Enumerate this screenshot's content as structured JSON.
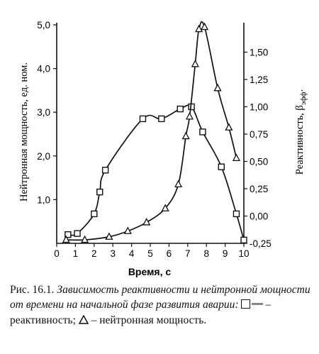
{
  "chart_data": {
    "type": "line",
    "x": [
      0.3,
      0.6,
      1.1,
      2.0,
      2.3,
      2.6,
      4.6,
      5.6,
      6.6,
      7.2,
      7.8,
      8.8,
      9.6,
      10.0
    ],
    "xlabel": "Время, с",
    "xlim": [
      0,
      10
    ],
    "xticks": [
      0,
      1,
      2,
      3,
      4,
      5,
      6,
      7,
      8,
      9,
      10
    ],
    "ylabel_left": "Нейтронная мощность, ед. ном.",
    "ylim_left": [
      0,
      5.0
    ],
    "yticks_left": [
      "1,0",
      "2,0",
      "3,0",
      "4,0",
      "5,0"
    ],
    "ylabel_right": "Реактивность, βэфф.",
    "ylim_right": [
      -0.25,
      1.75
    ],
    "yticks_right": [
      "-0,25",
      "0,00",
      "0,25",
      "0,50",
      "0,75",
      "1,00",
      "1,25",
      "1,50"
    ],
    "series": [
      {
        "name": "реактивность",
        "axis": "right",
        "marker": "square",
        "x": [
          0.6,
          1.1,
          2.0,
          2.3,
          2.6,
          4.6,
          5.6,
          6.6,
          7.2,
          7.8,
          8.8,
          9.6,
          10.0
        ],
        "values": [
          -0.17,
          -0.16,
          0.02,
          0.22,
          0.42,
          0.89,
          0.89,
          0.98,
          1.0,
          0.77,
          0.45,
          0.02,
          -0.22
        ]
      },
      {
        "name": "нейтронная мощность",
        "axis": "left",
        "marker": "triangle",
        "x": [
          0.5,
          1.5,
          2.8,
          3.8,
          4.8,
          5.8,
          6.5,
          6.9,
          7.1,
          7.4,
          7.6,
          7.9,
          8.6,
          9.2,
          9.6
        ],
        "values": [
          0.08,
          0.08,
          0.15,
          0.28,
          0.48,
          0.8,
          1.35,
          2.45,
          2.9,
          4.1,
          4.9,
          4.95,
          3.55,
          2.65,
          1.95
        ]
      }
    ]
  },
  "caption": {
    "prefix": "Рис. 16.1. ",
    "title": "Зависимость реактивности и нейтронной мощности от времени на начальной фазе развития аварии:",
    "legend_sq": " – реактивность;",
    "legend_tri": " – нейтронная мощность."
  }
}
